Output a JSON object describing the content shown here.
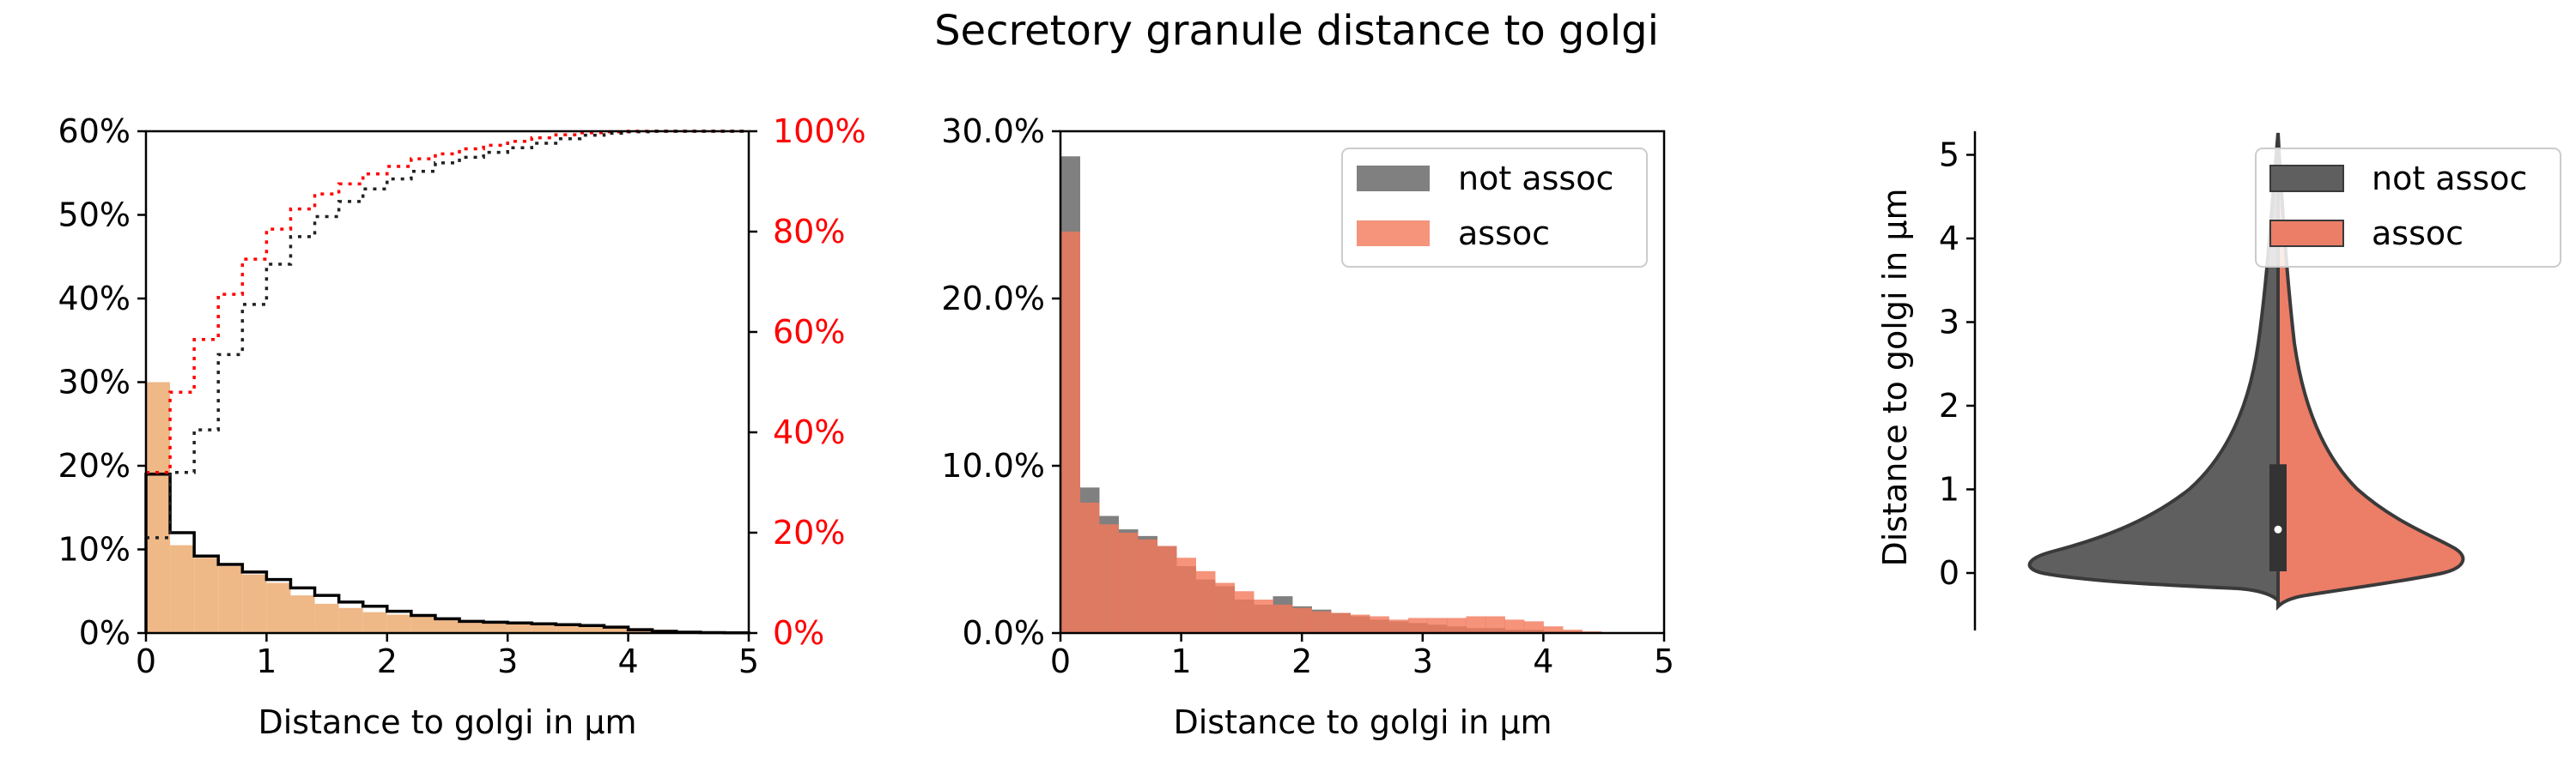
{
  "figure_title": "Secretory granule distance to golgi",
  "colors": {
    "hist_fill": "#efb887",
    "step_line": "#000000",
    "cum_red": "#ff0000",
    "cum_black": "#222222",
    "not_assoc": "#808080",
    "assoc": "#f3785a",
    "violin_not_assoc": "#5f5f5f",
    "violin_assoc": "#ec7d67",
    "violin_edge": "#3a3a3a"
  },
  "chart_data": [
    {
      "type": "histogram",
      "xlabel": "Distance to golgi in µm",
      "ylabel": "",
      "xlim": [
        0,
        5
      ],
      "ylim": [
        0,
        0.6
      ],
      "y2lim": [
        0,
        1
      ],
      "xticks": [
        "0",
        "1",
        "2",
        "3",
        "4",
        "5"
      ],
      "yticks": [
        "0%",
        "10%",
        "20%",
        "30%",
        "40%",
        "50%",
        "60%"
      ],
      "y2ticks": [
        "0%",
        "20%",
        "40%",
        "60%",
        "80%",
        "100%"
      ],
      "bin_width": 0.2,
      "bin_left": [
        0,
        0.2,
        0.4,
        0.6,
        0.8,
        1.0,
        1.2,
        1.4,
        1.6,
        1.8,
        2.0,
        2.2,
        2.4,
        2.6,
        2.8,
        3.0,
        3.2,
        3.4,
        3.6,
        3.8,
        4.0,
        4.2,
        4.4,
        4.6,
        4.8
      ],
      "filled_values": [
        0.3,
        0.105,
        0.09,
        0.08,
        0.07,
        0.06,
        0.045,
        0.035,
        0.03,
        0.025,
        0.022,
        0.02,
        0.016,
        0.013,
        0.012,
        0.012,
        0.011,
        0.01,
        0.009,
        0.008,
        0.006,
        0.004,
        0.002,
        0.001,
        0.0005
      ],
      "step_values": [
        0.19,
        0.12,
        0.092,
        0.082,
        0.073,
        0.064,
        0.054,
        0.045,
        0.037,
        0.032,
        0.026,
        0.021,
        0.017,
        0.014,
        0.013,
        0.012,
        0.011,
        0.01,
        0.009,
        0.007,
        0.004,
        0.002,
        0.001,
        0.0005,
        0.0002
      ],
      "cumulative_red": [
        0.32,
        0.48,
        0.585,
        0.675,
        0.745,
        0.805,
        0.845,
        0.875,
        0.895,
        0.915,
        0.93,
        0.945,
        0.955,
        0.965,
        0.972,
        0.98,
        0.987,
        0.993,
        0.997,
        0.999,
        1.0,
        1.0,
        1.0,
        1.0,
        1.0
      ],
      "cumulative_black": [
        0.19,
        0.32,
        0.405,
        0.555,
        0.655,
        0.735,
        0.79,
        0.83,
        0.86,
        0.885,
        0.905,
        0.92,
        0.937,
        0.948,
        0.958,
        0.967,
        0.976,
        0.985,
        0.992,
        0.996,
        0.999,
        1.0,
        1.0,
        1.0,
        1.0
      ]
    },
    {
      "type": "histogram",
      "xlabel": "Distance to golgi in µm",
      "ylabel": "",
      "xlim": [
        0,
        5
      ],
      "ylim": [
        0,
        0.3
      ],
      "xticks": [
        "0",
        "1",
        "2",
        "3",
        "4",
        "5"
      ],
      "yticks": [
        "0.0%",
        "10.0%",
        "20.0%",
        "30.0%"
      ],
      "bin_width": 0.16,
      "bin_left": [
        0,
        0.16,
        0.32,
        0.48,
        0.64,
        0.8,
        0.96,
        1.12,
        1.28,
        1.44,
        1.6,
        1.76,
        1.92,
        2.08,
        2.24,
        2.4,
        2.56,
        2.72,
        2.88,
        3.04,
        3.2,
        3.36,
        3.52,
        3.68,
        3.84,
        4.0,
        4.16,
        4.32,
        4.48
      ],
      "legend_position": "upper right",
      "series": [
        {
          "name": "not assoc",
          "values": [
            0.285,
            0.087,
            0.07,
            0.062,
            0.058,
            0.052,
            0.04,
            0.032,
            0.028,
            0.02,
            0.017,
            0.022,
            0.016,
            0.014,
            0.012,
            0.01,
            0.008,
            0.007,
            0.006,
            0.005,
            0.004,
            0.003,
            0.003,
            0.002,
            0.002,
            0.001,
            0.001,
            0.0,
            0.0
          ]
        },
        {
          "name": "assoc",
          "values": [
            0.24,
            0.078,
            0.065,
            0.06,
            0.056,
            0.052,
            0.045,
            0.037,
            0.03,
            0.025,
            0.02,
            0.017,
            0.015,
            0.013,
            0.012,
            0.011,
            0.01,
            0.008,
            0.009,
            0.009,
            0.009,
            0.01,
            0.01,
            0.008,
            0.007,
            0.004,
            0.002,
            0.001,
            0.0
          ]
        }
      ]
    },
    {
      "type": "violin",
      "ylabel": "Distance to golgi in µm",
      "ylim": [
        -0.7,
        5.3
      ],
      "yticks": [
        "0",
        "1",
        "2",
        "3",
        "4",
        "5"
      ],
      "legend_position": "upper right",
      "split": true,
      "box": {
        "q1": 0.02,
        "median": 0.52,
        "q3": 1.3
      },
      "series": [
        {
          "name": "not assoc",
          "side": "left"
        },
        {
          "name": "assoc",
          "side": "right"
        }
      ]
    }
  ]
}
